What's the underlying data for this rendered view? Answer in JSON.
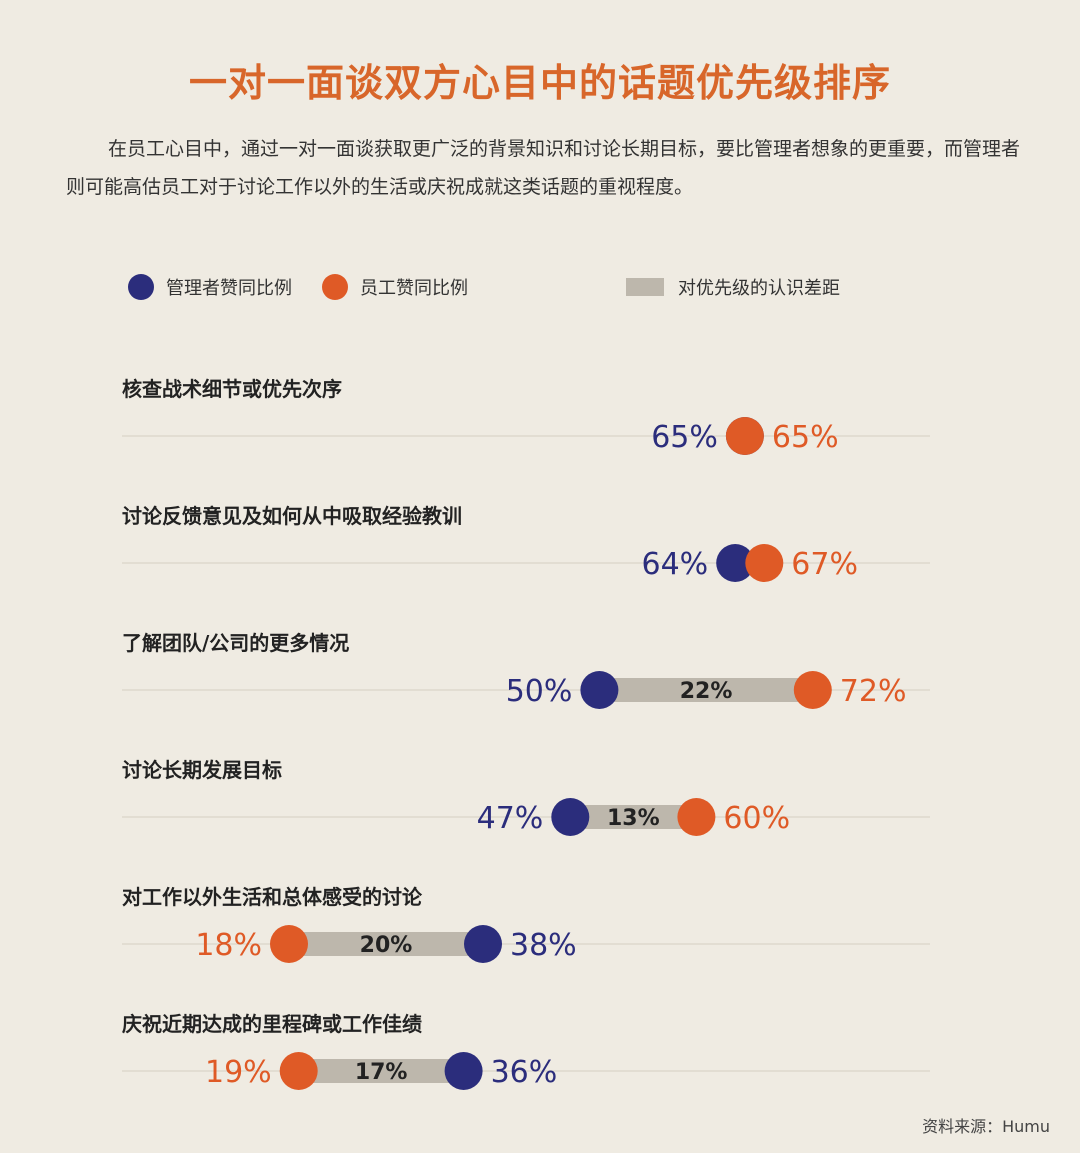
{
  "title": "一对一面谈双方心目中的话题优先级排序",
  "intro": "在员工心目中，通过一对一面谈获取更广泛的背景知识和讨论长期目标，要比管理者想象的更重要，而管理者则可能高估员工对于讨论工作以外的生活或庆祝成就这类话题的重视程度。",
  "legend": {
    "manager_label": "管理者赞同比例",
    "employee_label": "员工赞同比例",
    "gap_label": "对优先级的认识差距"
  },
  "colors": {
    "manager": "#2b2d7c",
    "employee": "#df5a26",
    "gap": "#bdb7ac",
    "title": "#d8662a",
    "background": "#efebe2"
  },
  "source": "资料来源：Humu",
  "chart_data": {
    "type": "dumbbell",
    "unit": "%",
    "series": [
      {
        "name": "管理者赞同比例",
        "key": "manager"
      },
      {
        "name": "员工赞同比例",
        "key": "employee"
      }
    ],
    "categories": [
      "核查战术细节或优先次序",
      "讨论反馈意见及如何从中吸取经验教训",
      "了解团队/公司的更多情况",
      "讨论长期发展目标",
      "对工作以外生活和总体感受的讨论",
      "庆祝近期达成的里程碑或工作佳绩"
    ],
    "manager": [
      65,
      64,
      50,
      47,
      38,
      36
    ],
    "employee": [
      65,
      67,
      72,
      60,
      18,
      19
    ],
    "gap": [
      null,
      null,
      22,
      13,
      20,
      17
    ],
    "manager_labels": [
      "65%",
      "64%",
      "50%",
      "47%",
      "38%",
      "36%"
    ],
    "employee_labels": [
      "65%",
      "67%",
      "72%",
      "60%",
      "18%",
      "19%"
    ],
    "gap_labels": [
      "",
      "",
      "22%",
      "13%",
      "20%",
      "17%"
    ]
  }
}
